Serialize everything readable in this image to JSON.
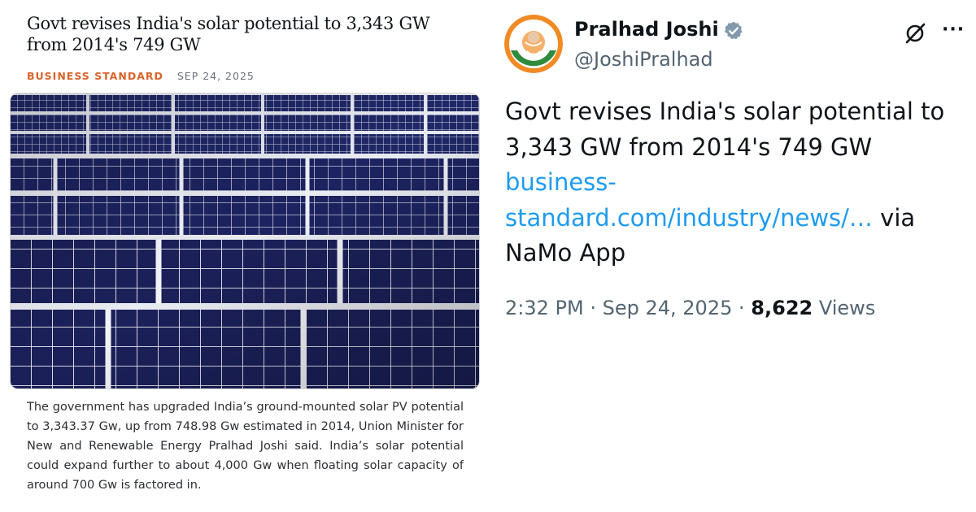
{
  "article": {
    "headline": "Govt revises India's solar potential to 3,343 GW from 2014's 749 GW",
    "source": "BUSINESS STANDARD",
    "date": "SEP 24, 2025",
    "image_alt": "Rows of solar panels",
    "summary": "The government has upgraded India’s ground-mounted solar PV potential to 3,343.37 Gw, up from 748.98 Gw estimated in 2014, Union Minister for New and Renewable Energy Pralhad Joshi said. India’s solar potential could expand further to about 4,000 Gw when floating solar capacity of around 700 Gw is factored in."
  },
  "tweet": {
    "display_name": "Pralhad Joshi",
    "handle": "@JoshiPralhad",
    "avatar_icon": "avatar",
    "verified_icon": "verified-badge-icon",
    "menu_icon": "more-icon",
    "grok_icon": "grok-icon",
    "text": "Govt revises India's solar potential to 3,343 GW from 2014's 749 GW",
    "link_line1": "business-",
    "link_line2": "standard.com/industry/news/…",
    "via": "via",
    "via_app": "NaMo App",
    "time": "2:32 PM",
    "date": "Sep 24, 2025",
    "separator": "·",
    "views_count": "8,622",
    "views_label": "Views"
  },
  "colors": {
    "link": "#1d9bf0",
    "source": "#d9632a",
    "muted": "#536471",
    "verified": "#829aab",
    "panel": "#1d2360"
  }
}
